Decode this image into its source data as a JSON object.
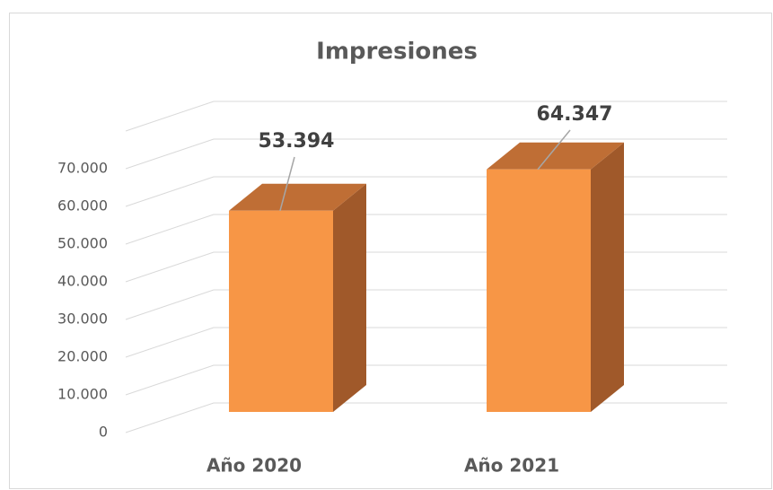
{
  "chart_data": {
    "type": "bar3d",
    "title": "Impresiones",
    "categories": [
      "Año 2020",
      "Año 2021"
    ],
    "values": [
      53394,
      64347
    ],
    "value_labels": [
      "53.394",
      "64.347"
    ],
    "color": "#f79646",
    "ylim": [
      0,
      80000
    ],
    "yticks": [
      0,
      {
        "value": 10000,
        "label": "10.000"
      },
      {
        "value": 20000,
        "label": "20.000"
      },
      {
        "value": 30000,
        "label": "30.000"
      },
      {
        "value": 40000,
        "label": "40.000"
      },
      {
        "value": 50000,
        "label": "50.000"
      },
      {
        "value": 60000,
        "label": "60.000"
      },
      {
        "value": 70000,
        "label": "70.000"
      }
    ],
    "grid": true
  }
}
